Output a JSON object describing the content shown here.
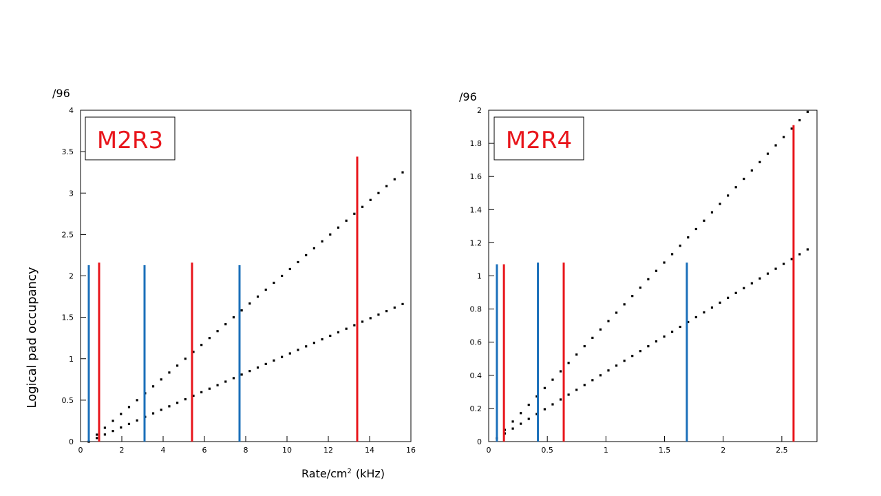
{
  "ylabel": "Logical pad occupancy",
  "xlabel_base": "Rate/cm",
  "xlabel_sup": "2",
  "xlabel_unit": "(kHz)",
  "colors": {
    "red": "#e8151b",
    "blue": "#1a6fba",
    "points": "#000000",
    "frame": "#000000"
  },
  "chart_data": [
    {
      "type": "scatter",
      "title": "M2R3",
      "y_unit": "/96",
      "xlim": [
        0,
        16
      ],
      "ylim": [
        0,
        4
      ],
      "xticks": [
        0,
        2,
        4,
        6,
        8,
        10,
        12,
        14,
        16
      ],
      "xtick_labels": [
        "0",
        "2",
        "4",
        "6",
        "8",
        "10",
        "12",
        "14",
        "16"
      ],
      "yticks": [
        0,
        0.5,
        1,
        1.5,
        2,
        2.5,
        3,
        3.5,
        4
      ],
      "ytick_labels": [
        "0",
        "0.5",
        "1",
        "1.5",
        "2",
        "2.5",
        "3",
        "3.5",
        "4"
      ],
      "grid": false,
      "series": [
        {
          "x_start": 0.4,
          "x_end": 15.6,
          "y_start": 0.0,
          "y_end": 3.25,
          "n": 40
        },
        {
          "x_start": 0.4,
          "x_end": 15.6,
          "y_start": 0.0,
          "y_end": 1.66,
          "n": 40
        }
      ],
      "vlines": [
        {
          "x": 0.4,
          "y": 2.13,
          "color": "blue"
        },
        {
          "x": 0.9,
          "y": 2.16,
          "color": "red"
        },
        {
          "x": 3.1,
          "y": 2.13,
          "color": "blue"
        },
        {
          "x": 5.4,
          "y": 2.16,
          "color": "red"
        },
        {
          "x": 7.7,
          "y": 2.13,
          "color": "blue"
        },
        {
          "x": 13.4,
          "y": 3.44,
          "color": "red"
        }
      ]
    },
    {
      "type": "scatter",
      "title": "M2R4",
      "y_unit": "/96",
      "xlim": [
        0,
        2.8
      ],
      "ylim": [
        0,
        2
      ],
      "xticks": [
        0,
        0.5,
        1,
        1.5,
        2,
        2.5
      ],
      "xtick_labels": [
        "0",
        "0.5",
        "1",
        "1.5",
        "2",
        "2.5"
      ],
      "yticks": [
        0,
        0.2,
        0.4,
        0.6,
        0.8,
        1,
        1.2,
        1.4,
        1.6,
        1.8,
        2
      ],
      "ytick_labels": [
        "0",
        "0.2",
        "0.4",
        "0.6",
        "0.8",
        "1",
        "1.2",
        "1.4",
        "1.6",
        "1.8",
        "2"
      ],
      "grid": false,
      "series": [
        {
          "x_start": 0.07,
          "x_end": 2.72,
          "y_start": 0.02,
          "y_end": 1.99,
          "n": 40
        },
        {
          "x_start": 0.07,
          "x_end": 2.72,
          "y_start": 0.02,
          "y_end": 1.16,
          "n": 40
        }
      ],
      "vlines": [
        {
          "x": 0.07,
          "y": 1.07,
          "color": "blue"
        },
        {
          "x": 0.13,
          "y": 1.07,
          "color": "red"
        },
        {
          "x": 0.42,
          "y": 1.08,
          "color": "blue"
        },
        {
          "x": 0.64,
          "y": 1.08,
          "color": "red"
        },
        {
          "x": 1.69,
          "y": 1.08,
          "color": "blue"
        },
        {
          "x": 2.6,
          "y": 1.91,
          "color": "red"
        }
      ]
    }
  ]
}
